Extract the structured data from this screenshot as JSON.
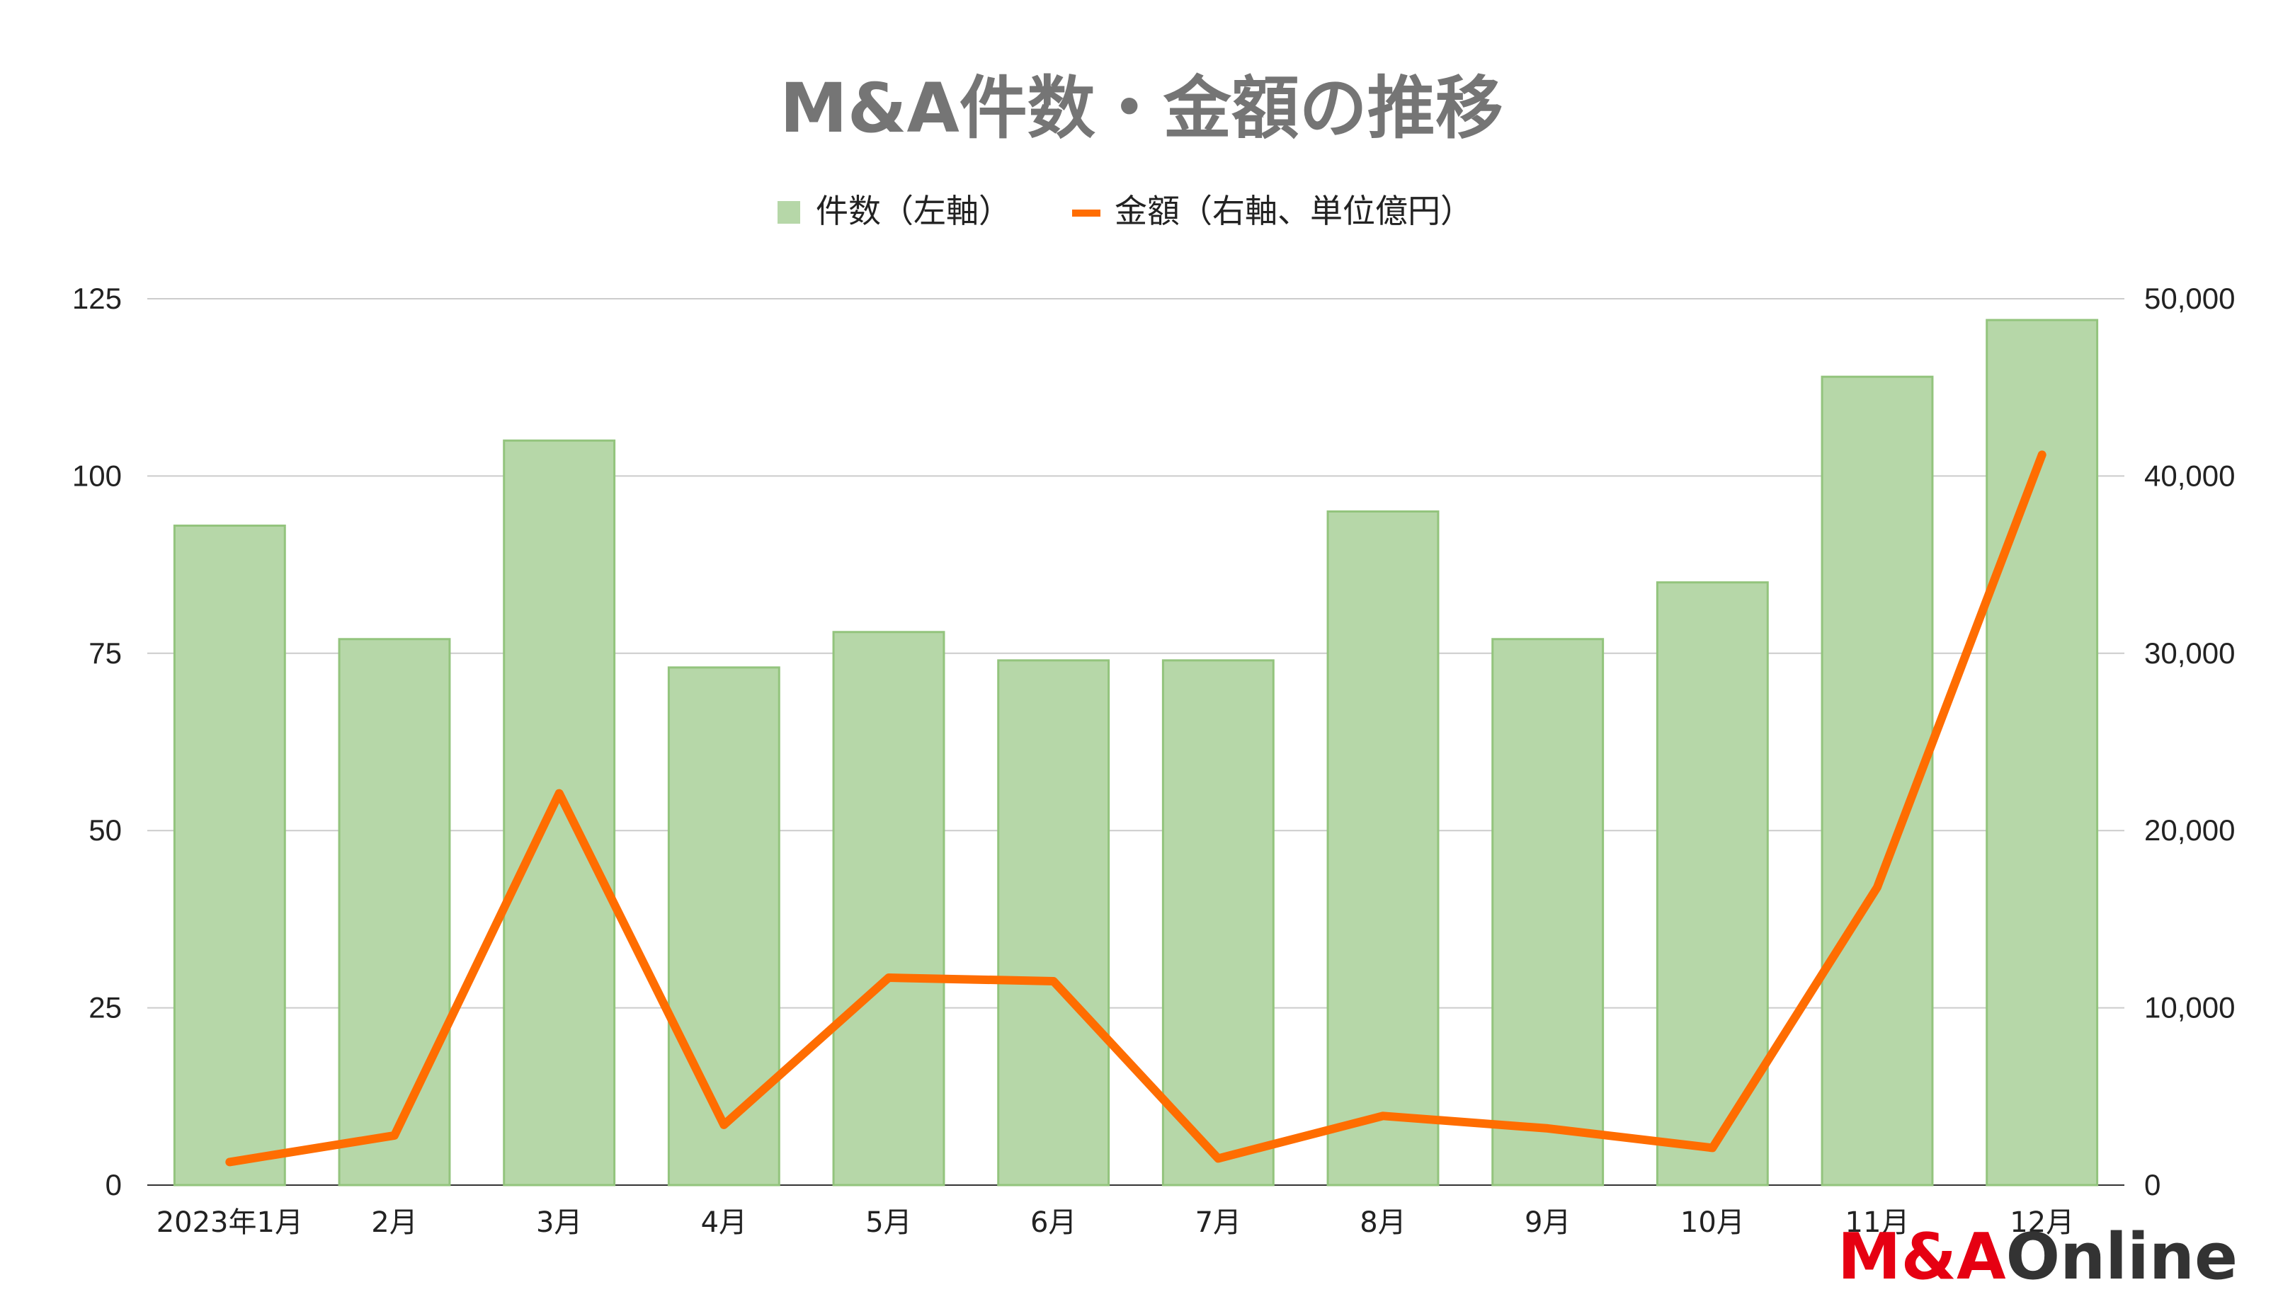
{
  "chart_data": {
    "type": "bar",
    "title": "M&A件数・金額の推移",
    "categories": [
      "2023年1月",
      "2月",
      "3月",
      "4月",
      "5月",
      "6月",
      "7月",
      "8月",
      "9月",
      "10月",
      "11月",
      "12月"
    ],
    "series": [
      {
        "name": "件数（左軸）",
        "type": "bar",
        "axis": "left",
        "color": "#b6d7a8",
        "values": [
          93,
          77,
          105,
          73,
          78,
          74,
          74,
          95,
          77,
          85,
          114,
          122
        ]
      },
      {
        "name": "金額（右軸、単位億円）",
        "type": "line",
        "axis": "right",
        "color": "#ff6d01",
        "values": [
          1300,
          2800,
          22100,
          3400,
          11700,
          11500,
          1500,
          3900,
          3200,
          2100,
          16800,
          41200
        ]
      }
    ],
    "y_left": {
      "min": 0,
      "max": 125,
      "ticks": [
        0,
        25,
        50,
        75,
        100,
        125
      ],
      "tick_labels": [
        "0",
        "25",
        "50",
        "75",
        "100",
        "125"
      ]
    },
    "y_right": {
      "min": 0,
      "max": 50000,
      "ticks": [
        0,
        10000,
        20000,
        30000,
        40000,
        50000
      ],
      "tick_labels": [
        "0",
        "10,000",
        "20,000",
        "30,000",
        "40,000",
        "50,000"
      ]
    },
    "grid": true,
    "legend_position": "top-center"
  },
  "logo": {
    "part1": "M&A",
    "part2": "Online",
    "color_red": "#e60012",
    "color_dark": "#333333"
  }
}
